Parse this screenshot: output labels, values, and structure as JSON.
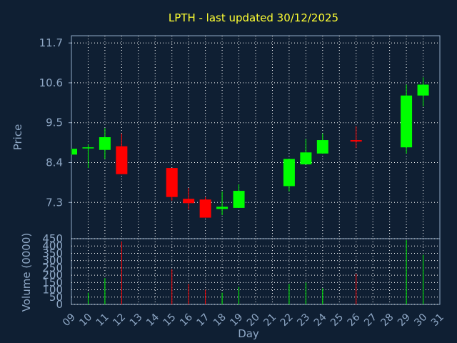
{
  "chart_data": {
    "type": "candlestick",
    "title": "LPTH - last updated 30/12/2025",
    "xlabel": "Day",
    "ylabel": "Price",
    "volume_label": "Volume (0000)",
    "x_ticks": [
      "09",
      "10",
      "11",
      "12",
      "13",
      "14",
      "15",
      "16",
      "17",
      "18",
      "19",
      "20",
      "21",
      "22",
      "23",
      "24",
      "25",
      "26",
      "27",
      "28",
      "29",
      "30",
      "31"
    ],
    "price_ticks": [
      "7.3",
      "8.4",
      "9.5",
      "10.6",
      "11.7"
    ],
    "price_ylim": [
      6.3,
      11.9
    ],
    "volume_ticks": [
      "0",
      "50",
      "100",
      "150",
      "200",
      "250",
      "300",
      "350",
      "400",
      "450"
    ],
    "volume_ylim": [
      0,
      450
    ],
    "grid": true,
    "colors": {
      "up": "#00ff00",
      "down": "#ff0000",
      "background": "#0f1f33",
      "grid": "#ffffff",
      "axis": "#8fa8c6",
      "title": "#ffff33"
    },
    "candles": [
      {
        "day": 9,
        "open": 8.62,
        "close": 8.78,
        "high": 8.78,
        "low": 8.62,
        "volume": 0
      },
      {
        "day": 10,
        "open": 8.8,
        "close": 8.82,
        "high": 8.9,
        "low": 8.25,
        "volume": 80
      },
      {
        "day": 11,
        "open": 8.75,
        "close": 9.1,
        "high": 9.35,
        "low": 8.5,
        "volume": 180
      },
      {
        "day": 12,
        "open": 8.85,
        "close": 8.08,
        "high": 9.2,
        "low": 8.08,
        "volume": 430
      },
      {
        "day": 15,
        "open": 8.25,
        "close": 7.45,
        "high": 8.25,
        "low": 7.35,
        "volume": 240
      },
      {
        "day": 16,
        "open": 7.4,
        "close": 7.28,
        "high": 7.7,
        "low": 7.1,
        "volume": 140
      },
      {
        "day": 17,
        "open": 7.38,
        "close": 6.88,
        "high": 7.45,
        "low": 6.88,
        "volume": 100
      },
      {
        "day": 18,
        "open": 7.12,
        "close": 7.18,
        "high": 7.6,
        "low": 6.95,
        "volume": 80
      },
      {
        "day": 19,
        "open": 7.15,
        "close": 7.62,
        "high": 7.8,
        "low": 7.15,
        "volume": 120
      },
      {
        "day": 22,
        "open": 7.75,
        "close": 8.5,
        "high": 8.5,
        "low": 7.6,
        "volume": 140
      },
      {
        "day": 23,
        "open": 8.35,
        "close": 8.68,
        "high": 9.05,
        "low": 8.35,
        "volume": 150
      },
      {
        "day": 24,
        "open": 8.65,
        "close": 9.02,
        "high": 9.2,
        "low": 8.65,
        "volume": 110
      },
      {
        "day": 26,
        "open": 9.02,
        "close": 8.98,
        "high": 9.4,
        "low": 8.8,
        "volume": 210
      },
      {
        "day": 29,
        "open": 8.82,
        "close": 10.25,
        "high": 10.55,
        "low": 8.65,
        "volume": 440
      },
      {
        "day": 30,
        "open": 10.25,
        "close": 10.55,
        "high": 10.75,
        "low": 9.95,
        "volume": 340
      }
    ]
  }
}
